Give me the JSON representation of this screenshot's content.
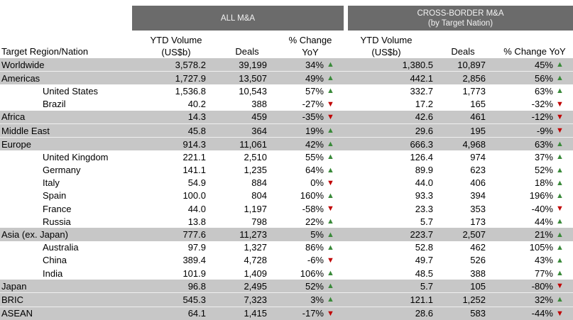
{
  "headers": {
    "all_ma": "ALL M&A",
    "cross_border_line1": "CROSS-BORDER M&A",
    "cross_border_line2": "(by Target Nation)",
    "target": "Target Region/Nation",
    "ytd_volume_line1": "YTD Volume",
    "ytd_volume_line2": "(US$b)",
    "deals": "Deals",
    "pct_change_line1": "% Change",
    "pct_change_line2": "YoY",
    "pct_change_yoy": "% Change YoY"
  },
  "colors": {
    "up": "#3a8a3a",
    "down": "#c00000",
    "header_bg": "#6b6b6b",
    "shaded_row": "#c7c7c7"
  },
  "rows": [
    {
      "name": "Worldwide",
      "indent": false,
      "shaded": true,
      "all_vol": "3,578.2",
      "all_deals": "39,199",
      "all_chg": "34%",
      "all_dir": "up",
      "cb_vol": "1,380.5",
      "cb_deals": "10,897",
      "cb_chg": "45%",
      "cb_dir": "up"
    },
    {
      "name": "Americas",
      "indent": false,
      "shaded": true,
      "all_vol": "1,727.9",
      "all_deals": "13,507",
      "all_chg": "49%",
      "all_dir": "up",
      "cb_vol": "442.1",
      "cb_deals": "2,856",
      "cb_chg": "56%",
      "cb_dir": "up"
    },
    {
      "name": "United States",
      "indent": true,
      "shaded": false,
      "all_vol": "1,536.8",
      "all_deals": "10,543",
      "all_chg": "57%",
      "all_dir": "up",
      "cb_vol": "332.7",
      "cb_deals": "1,773",
      "cb_chg": "63%",
      "cb_dir": "up"
    },
    {
      "name": "Brazil",
      "indent": true,
      "shaded": false,
      "all_vol": "40.2",
      "all_deals": "388",
      "all_chg": "-27%",
      "all_dir": "down",
      "cb_vol": "17.2",
      "cb_deals": "165",
      "cb_chg": "-32%",
      "cb_dir": "down"
    },
    {
      "name": "Africa",
      "indent": false,
      "shaded": true,
      "all_vol": "14.3",
      "all_deals": "459",
      "all_chg": "-35%",
      "all_dir": "down",
      "cb_vol": "42.6",
      "cb_deals": "461",
      "cb_chg": "-12%",
      "cb_dir": "down"
    },
    {
      "name": "Middle East",
      "indent": false,
      "shaded": true,
      "all_vol": "45.8",
      "all_deals": "364",
      "all_chg": "19%",
      "all_dir": "up",
      "cb_vol": "29.6",
      "cb_deals": "195",
      "cb_chg": "-9%",
      "cb_dir": "down"
    },
    {
      "name": "Europe",
      "indent": false,
      "shaded": true,
      "all_vol": "914.3",
      "all_deals": "11,061",
      "all_chg": "42%",
      "all_dir": "up",
      "cb_vol": "666.3",
      "cb_deals": "4,968",
      "cb_chg": "63%",
      "cb_dir": "up"
    },
    {
      "name": "United Kingdom",
      "indent": true,
      "shaded": false,
      "all_vol": "221.1",
      "all_deals": "2,510",
      "all_chg": "55%",
      "all_dir": "up",
      "cb_vol": "126.4",
      "cb_deals": "974",
      "cb_chg": "37%",
      "cb_dir": "up"
    },
    {
      "name": "Germany",
      "indent": true,
      "shaded": false,
      "all_vol": "141.1",
      "all_deals": "1,235",
      "all_chg": "64%",
      "all_dir": "up",
      "cb_vol": "89.9",
      "cb_deals": "623",
      "cb_chg": "52%",
      "cb_dir": "up"
    },
    {
      "name": "Italy",
      "indent": true,
      "shaded": false,
      "all_vol": "54.9",
      "all_deals": "884",
      "all_chg": "0%",
      "all_dir": "down",
      "cb_vol": "44.0",
      "cb_deals": "406",
      "cb_chg": "18%",
      "cb_dir": "up"
    },
    {
      "name": "Spain",
      "indent": true,
      "shaded": false,
      "all_vol": "100.0",
      "all_deals": "804",
      "all_chg": "160%",
      "all_dir": "up",
      "cb_vol": "93.3",
      "cb_deals": "394",
      "cb_chg": "196%",
      "cb_dir": "up"
    },
    {
      "name": "France",
      "indent": true,
      "shaded": false,
      "all_vol": "44.0",
      "all_deals": "1,197",
      "all_chg": "-58%",
      "all_dir": "down",
      "cb_vol": "23.3",
      "cb_deals": "353",
      "cb_chg": "-40%",
      "cb_dir": "down"
    },
    {
      "name": "Russia",
      "indent": true,
      "shaded": false,
      "all_vol": "13.8",
      "all_deals": "798",
      "all_chg": "22%",
      "all_dir": "up",
      "cb_vol": "5.7",
      "cb_deals": "173",
      "cb_chg": "44%",
      "cb_dir": "up"
    },
    {
      "name": "Asia (ex. Japan)",
      "indent": false,
      "shaded": true,
      "all_vol": "777.6",
      "all_deals": "11,273",
      "all_chg": "5%",
      "all_dir": "up",
      "cb_vol": "223.7",
      "cb_deals": "2,507",
      "cb_chg": "21%",
      "cb_dir": "up"
    },
    {
      "name": "Australia",
      "indent": true,
      "shaded": false,
      "all_vol": "97.9",
      "all_deals": "1,327",
      "all_chg": "86%",
      "all_dir": "up",
      "cb_vol": "52.8",
      "cb_deals": "462",
      "cb_chg": "105%",
      "cb_dir": "up"
    },
    {
      "name": "China",
      "indent": true,
      "shaded": false,
      "all_vol": "389.4",
      "all_deals": "4,728",
      "all_chg": "-6%",
      "all_dir": "down",
      "cb_vol": "49.7",
      "cb_deals": "526",
      "cb_chg": "43%",
      "cb_dir": "up"
    },
    {
      "name": "India",
      "indent": true,
      "shaded": false,
      "all_vol": "101.9",
      "all_deals": "1,409",
      "all_chg": "106%",
      "all_dir": "up",
      "cb_vol": "48.5",
      "cb_deals": "388",
      "cb_chg": "77%",
      "cb_dir": "up"
    },
    {
      "name": "Japan",
      "indent": false,
      "shaded": true,
      "all_vol": "96.8",
      "all_deals": "2,495",
      "all_chg": "52%",
      "all_dir": "up",
      "cb_vol": "5.7",
      "cb_deals": "105",
      "cb_chg": "-80%",
      "cb_dir": "down"
    },
    {
      "name": "BRIC",
      "indent": false,
      "shaded": true,
      "all_vol": "545.3",
      "all_deals": "7,323",
      "all_chg": "3%",
      "all_dir": "up",
      "cb_vol": "121.1",
      "cb_deals": "1,252",
      "cb_chg": "32%",
      "cb_dir": "up"
    },
    {
      "name": "ASEAN",
      "indent": false,
      "shaded": true,
      "all_vol": "64.1",
      "all_deals": "1,415",
      "all_chg": "-17%",
      "all_dir": "down",
      "cb_vol": "28.6",
      "cb_deals": "583",
      "cb_chg": "-44%",
      "cb_dir": "down"
    }
  ]
}
